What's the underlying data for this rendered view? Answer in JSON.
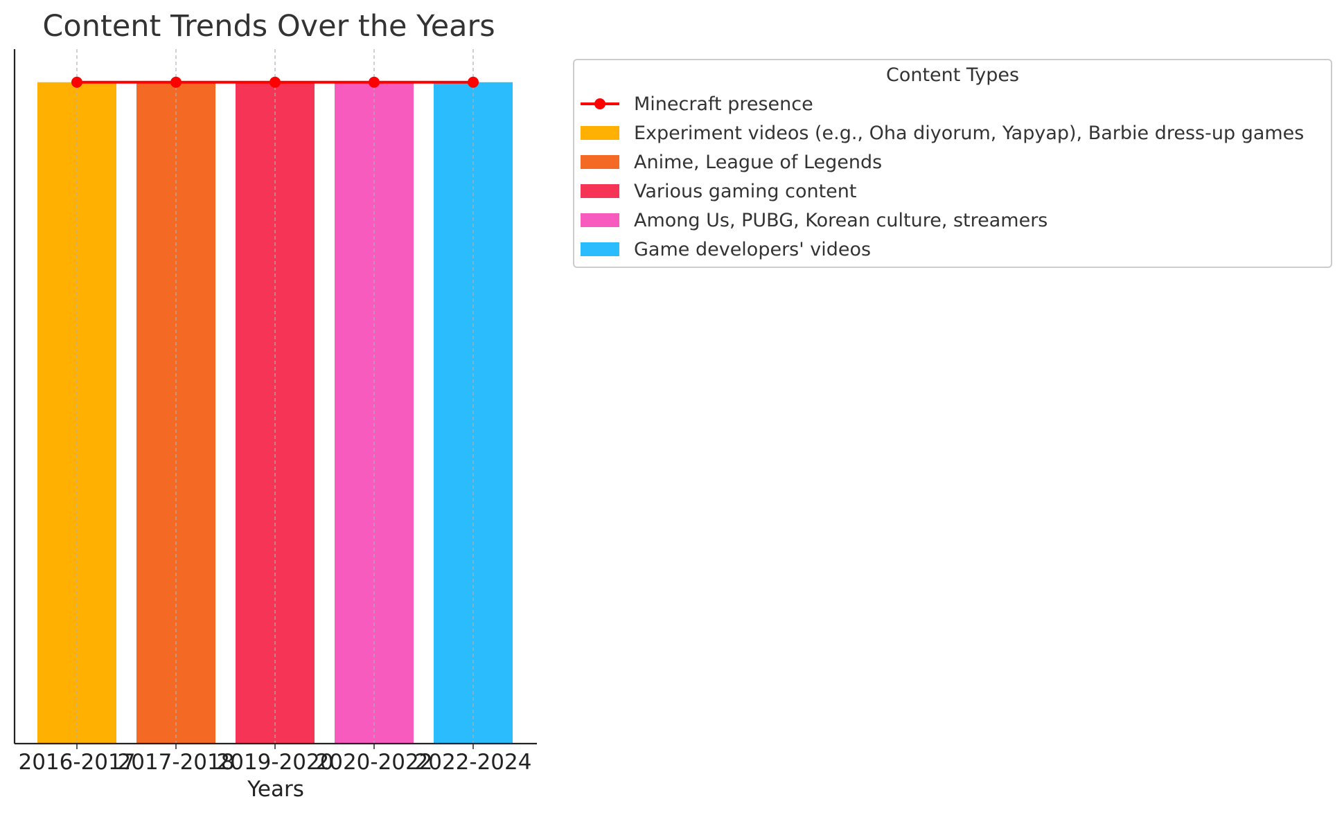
{
  "chart_data": {
    "type": "bar",
    "title": "Content Trends Over the Years",
    "xlabel": "Years",
    "ylabel": "",
    "categories": [
      "2016-2017",
      "2017-2018",
      "2019-2020",
      "2020-2022",
      "2022-2024"
    ],
    "values": [
      1,
      1,
      1,
      1,
      1
    ],
    "ylim": [
      0,
      1.05
    ],
    "bar_colors": [
      "#FFB000",
      "#F46A25",
      "#F63455",
      "#F75BBE",
      "#2ABCFD"
    ],
    "series": [
      {
        "name": "Minecraft presence",
        "type": "line",
        "values": [
          1,
          1,
          1,
          1,
          1
        ],
        "color": "#FF0000"
      }
    ],
    "grid": {
      "x": true,
      "y": false
    },
    "y_ticks_visible": false,
    "legend": {
      "title": "Content Types",
      "placement": "outside-right",
      "entries": [
        {
          "label": "Minecraft presence",
          "kind": "line",
          "color": "#FF0000"
        },
        {
          "label": "Experiment videos (e.g., Oha diyorum, Yapyap), Barbie dress-up games",
          "kind": "bar",
          "color": "#FFB000"
        },
        {
          "label": "Anime, League of Legends",
          "kind": "bar",
          "color": "#F46A25"
        },
        {
          "label": "Various gaming content",
          "kind": "bar",
          "color": "#F63455"
        },
        {
          "label": "Among Us, PUBG, Korean culture, streamers",
          "kind": "bar",
          "color": "#F75BBE"
        },
        {
          "label": "Game developers' videos",
          "kind": "bar",
          "color": "#2ABCFD"
        }
      ]
    }
  }
}
